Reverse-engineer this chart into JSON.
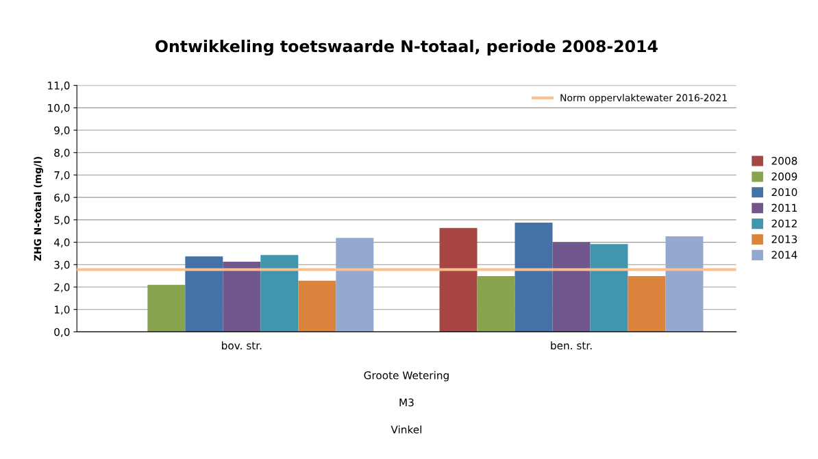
{
  "chart_data": {
    "type": "bar",
    "title": "Ontwikkeling toetswaarde N-totaal, periode 2008-2014",
    "ylabel": "ZHG N-totaal (mg/l)",
    "categories": [
      "bov. str.",
      "ben. str."
    ],
    "series": [
      {
        "name": "2008",
        "color": "#a84644",
        "values": [
          null,
          4.64
        ]
      },
      {
        "name": "2009",
        "color": "#88a44e",
        "values": [
          2.1,
          2.49
        ]
      },
      {
        "name": "2010",
        "color": "#4471a6",
        "values": [
          3.37,
          4.87
        ]
      },
      {
        "name": "2011",
        "color": "#70578c",
        "values": [
          3.13,
          4.0
        ]
      },
      {
        "name": "2012",
        "color": "#4196ae",
        "values": [
          3.43,
          3.92
        ]
      },
      {
        "name": "2013",
        "color": "#db843e",
        "values": [
          2.28,
          2.49
        ]
      },
      {
        "name": "2014",
        "color": "#93a9d0",
        "values": [
          4.19,
          4.26
        ]
      }
    ],
    "ylim": [
      0,
      11
    ],
    "yticks": [
      {
        "value": 0,
        "label": "0,0"
      },
      {
        "value": 1,
        "label": "1,0"
      },
      {
        "value": 2,
        "label": "2,0"
      },
      {
        "value": 3,
        "label": "3,0"
      },
      {
        "value": 4,
        "label": "4,0"
      },
      {
        "value": 5,
        "label": "5,0"
      },
      {
        "value": 6,
        "label": "6,0"
      },
      {
        "value": 7,
        "label": "7,0"
      },
      {
        "value": 8,
        "label": "8,0"
      },
      {
        "value": 9,
        "label": "9,0"
      },
      {
        "value": 10,
        "label": "10,0"
      },
      {
        "value": 11,
        "label": "11,0"
      }
    ],
    "ref_lines": [
      {
        "axis": "y",
        "value": 2.78,
        "label": "Norm oppervlaktewater 2016-2021",
        "color": "#fac090"
      }
    ],
    "annotations": [
      "Groote Wetering",
      "M3",
      "Vinkel"
    ],
    "grid": "y",
    "legend": "right"
  }
}
